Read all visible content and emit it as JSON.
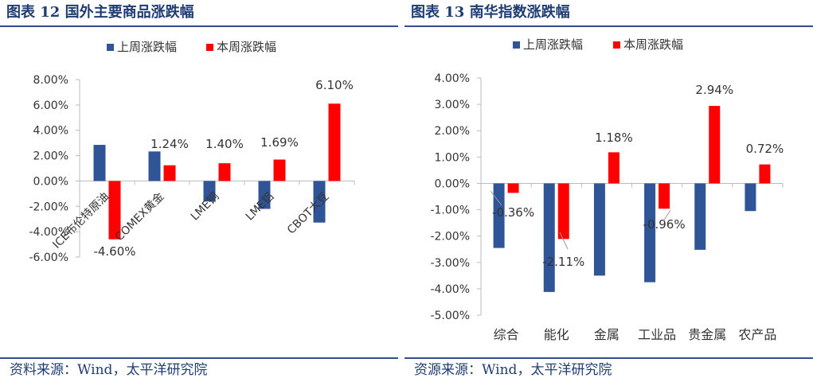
{
  "colors": {
    "series_last_week": "#2f5597",
    "series_this_week": "#ff0000",
    "title": "#1f3c73"
  },
  "chart_data": [
    {
      "type": "bar",
      "title": "图表 12 国外主要商品涨跌幅",
      "source": "资料来源：Wind，太平洋研究院",
      "categories": [
        "ICE布伦特原油",
        "COMEX黄金",
        "LME铜",
        "LME铝",
        "CBOT大豆"
      ],
      "series": [
        {
          "name": "上周涨跌幅",
          "values": [
            2.85,
            2.33,
            -1.62,
            -2.2,
            -3.28
          ]
        },
        {
          "name": "本周涨跌幅",
          "values": [
            -4.6,
            1.24,
            1.4,
            1.69,
            6.1
          ]
        }
      ],
      "data_labels": [
        "-4.60%",
        "1.24%",
        "1.40%",
        "1.69%",
        "6.10%"
      ],
      "yticks": [
        "8.00%",
        "6.00%",
        "4.00%",
        "2.00%",
        "0.00%",
        "-2.00%",
        "-4.00%",
        "-6.00%"
      ],
      "ylim": [
        -6,
        8
      ],
      "xlabel": "",
      "ylabel": "",
      "legend": "top-left"
    },
    {
      "type": "bar",
      "title": "图表 13 南华指数涨跌幅",
      "source": "资源来源：Wind，太平洋研究院",
      "categories": [
        "综合",
        "能化",
        "金属",
        "工业品",
        "贵金属",
        "农产品"
      ],
      "series": [
        {
          "name": "上周涨跌幅",
          "values": [
            -2.45,
            -4.12,
            -3.5,
            -3.75,
            -2.52,
            -1.05
          ]
        },
        {
          "name": "本周涨跌幅",
          "values": [
            -0.36,
            -2.11,
            1.18,
            -0.96,
            2.94,
            0.72
          ]
        }
      ],
      "data_labels": [
        "-0.36%",
        "-2.11%",
        "1.18%",
        "-0.96%",
        "2.94%",
        "0.72%"
      ],
      "yticks": [
        "4.00%",
        "3.00%",
        "2.00%",
        "1.00%",
        "0.00%",
        "-1.00%",
        "-2.00%",
        "-3.00%",
        "-4.00%",
        "-5.00%"
      ],
      "ylim": [
        -5,
        4
      ],
      "xlabel": "",
      "ylabel": "",
      "legend": "top-left"
    }
  ]
}
